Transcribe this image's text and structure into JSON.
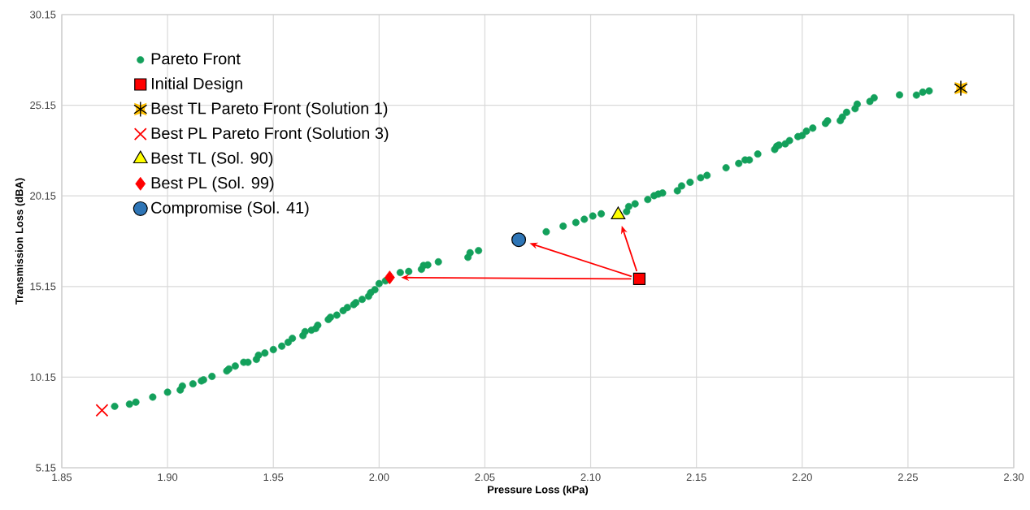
{
  "chart_data": {
    "type": "scatter",
    "xlabel": "Pressure Loss (kPa)",
    "ylabel": "Transmission Loss (dBA)",
    "xlim": [
      1.85,
      2.3
    ],
    "ylim": [
      5.15,
      30.15
    ],
    "xticks": [
      1.85,
      {
        "value": 1.9,
        "label": "1.90"
      },
      1.95,
      {
        "value": 2.0,
        "label": "2.00"
      },
      2.05,
      {
        "value": 2.1,
        "label": "2.10"
      },
      2.15,
      {
        "value": 2.2,
        "label": "2.20"
      },
      2.25,
      {
        "value": 2.3,
        "label": "2.30"
      }
    ],
    "yticks": [
      5.15,
      10.15,
      15.15,
      20.15,
      25.15,
      30.15
    ],
    "grid": true,
    "legend": "top left",
    "series": [
      {
        "name": "Pareto Front",
        "color": "#13a05b",
        "marker": "circle",
        "x": [
          1.875,
          1.882,
          1.885,
          1.893,
          1.9,
          1.906,
          1.907,
          1.912,
          1.916,
          1.917,
          1.921,
          1.928,
          1.929,
          1.932,
          1.936,
          1.938,
          1.942,
          1.943,
          1.946,
          1.95,
          1.954,
          1.957,
          1.959,
          1.964,
          1.965,
          1.968,
          1.97,
          1.971,
          1.976,
          1.977,
          1.98,
          1.983,
          1.985,
          1.988,
          1.989,
          1.992,
          1.995,
          1.996,
          1.998,
          2.0,
          2.003,
          2.01,
          2.014,
          2.02,
          2.021,
          2.023,
          2.028,
          2.042,
          2.043,
          2.047,
          2.079,
          2.087,
          2.093,
          2.097,
          2.101,
          2.105,
          2.117,
          2.118,
          2.121,
          2.127,
          2.13,
          2.132,
          2.134,
          2.141,
          2.143,
          2.147,
          2.152,
          2.155,
          2.164,
          2.17,
          2.173,
          2.175,
          2.179,
          2.187,
          2.188,
          2.189,
          2.192,
          2.194,
          2.198,
          2.2,
          2.202,
          2.205,
          2.211,
          2.212,
          2.218,
          2.219,
          2.221,
          2.225,
          2.226,
          2.232,
          2.234,
          2.246,
          2.254,
          2.257,
          2.26
        ],
        "values": [
          8.54,
          8.66,
          8.77,
          9.05,
          9.32,
          9.44,
          9.66,
          9.78,
          9.94,
          10.0,
          10.19,
          10.49,
          10.6,
          10.76,
          10.97,
          10.97,
          11.13,
          11.36,
          11.48,
          11.67,
          11.86,
          12.07,
          12.29,
          12.44,
          12.66,
          12.74,
          12.83,
          13.01,
          13.33,
          13.45,
          13.57,
          13.82,
          13.99,
          14.15,
          14.26,
          14.44,
          14.61,
          14.81,
          14.97,
          15.31,
          15.46,
          15.92,
          15.98,
          16.1,
          16.31,
          16.34,
          16.51,
          16.76,
          17.01,
          17.13,
          18.17,
          18.48,
          18.68,
          18.86,
          19.04,
          19.16,
          19.28,
          19.56,
          19.71,
          19.95,
          20.16,
          20.25,
          20.31,
          20.43,
          20.7,
          20.9,
          21.15,
          21.28,
          21.7,
          21.94,
          22.13,
          22.13,
          22.46,
          22.71,
          22.89,
          22.95,
          23.02,
          23.2,
          23.42,
          23.48,
          23.72,
          23.89,
          24.15,
          24.29,
          24.3,
          24.5,
          24.76,
          24.96,
          25.21,
          25.36,
          25.56,
          25.72,
          25.71,
          25.87,
          25.94
        ]
      },
      {
        "name": "Initial Design",
        "color": "#ff0000",
        "marker": "square",
        "x": [
          2.123
        ],
        "values": [
          15.57
        ]
      },
      {
        "name": "Best TL Pareto Front (Solution 1)",
        "color": "#ffc000",
        "marker": "star",
        "x": [
          2.275
        ],
        "values": [
          26.09
        ]
      },
      {
        "name": "Best PL Pareto Front (Solution 3)",
        "color": "#ff0000",
        "marker": "cross",
        "x": [
          1.869
        ],
        "values": [
          8.32
        ]
      },
      {
        "name": "Best TL (Sol. 90)",
        "color": "#ffff00",
        "marker": "triangle",
        "x": [
          2.113
        ],
        "values": [
          19.1
        ]
      },
      {
        "name": "Best PL (Sol. 99)",
        "color": "#ff0000",
        "marker": "diamond",
        "x": [
          2.005
        ],
        "values": [
          15.65
        ]
      },
      {
        "name": "Compromise (Sol. 41)",
        "color": "#2e75b6",
        "marker": "circle",
        "x": [
          2.066
        ],
        "values": [
          17.73
        ]
      }
    ]
  }
}
